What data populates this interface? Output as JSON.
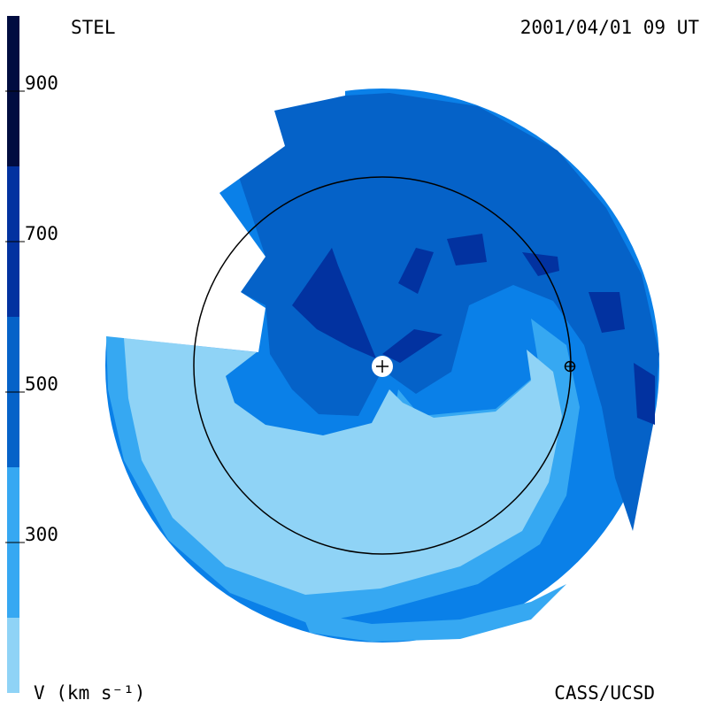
{
  "chart_data": {
    "type": "colormap",
    "title": "STEL",
    "subtitle": "2001/04/01 09 UT",
    "colorbar_label": "V (km s⁻¹)",
    "credit": "CASS/UCSD",
    "ylim": [
      100,
      1000
    ],
    "yticks": [
      300,
      500,
      700,
      900
    ],
    "levels": [
      100,
      200,
      400,
      600,
      800,
      1000
    ],
    "colors": [
      "#8fd3f6",
      "#36a8f2",
      "#0562c8",
      "#0232a0",
      "#000c40"
    ]
  }
}
